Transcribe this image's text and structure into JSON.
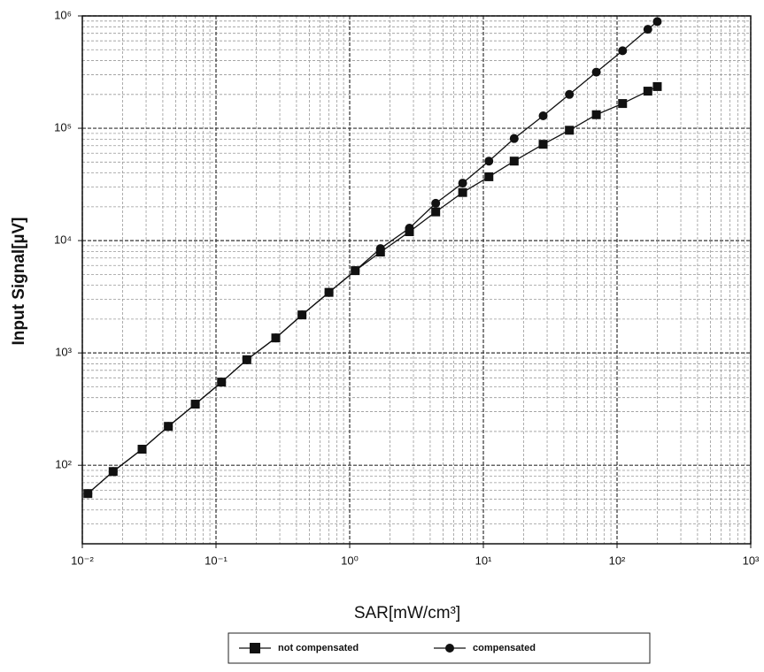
{
  "chart_data": {
    "type": "line",
    "x_label": "SAR[mW/cm³]",
    "y_label": "Input Signal[µV]",
    "x": [
      0.011,
      0.017,
      0.028,
      0.044,
      0.07,
      0.11,
      0.17,
      0.28,
      0.44,
      0.7,
      1.1,
      1.7,
      2.8,
      4.4,
      7,
      11,
      17,
      28,
      44,
      70,
      110,
      170,
      200
    ],
    "series": [
      {
        "name": "not compensated",
        "color": "#111111",
        "marker": "square",
        "values": [
          56,
          88,
          139,
          222,
          350,
          550,
          870,
          1360,
          2180,
          3460,
          5400,
          7900,
          12000,
          18000,
          26800,
          37000,
          51000,
          72000,
          96000,
          132000,
          166000,
          214000,
          235000
        ]
      },
      {
        "name": "compensated",
        "color": "#111111",
        "marker": "circle",
        "values": [
          56,
          88,
          139,
          222,
          350,
          550,
          870,
          1360,
          2180,
          3460,
          5400,
          8500,
          12900,
          21500,
          32500,
          51000,
          81000,
          129000,
          200000,
          316000,
          490000,
          760000,
          890000
        ]
      }
    ],
    "x_log": true,
    "y_log": true,
    "xlim": [
      0.01,
      1000
    ],
    "ylim": [
      20,
      1000000
    ],
    "xticks": [
      {
        "value": 0.01,
        "label": "10⁻²"
      },
      {
        "value": 0.1,
        "label": "10⁻¹"
      },
      {
        "value": 1,
        "label": "10⁰"
      },
      {
        "value": 10,
        "label": "10¹"
      },
      {
        "value": 100,
        "label": "10²"
      },
      {
        "value": 1000,
        "label": "10³"
      }
    ],
    "yticks": [
      {
        "value": 100,
        "label": "10²"
      },
      {
        "value": 1000,
        "label": "10³"
      },
      {
        "value": 10000,
        "label": "10⁴"
      },
      {
        "value": 100000,
        "label": "10⁵"
      },
      {
        "value": 1000000,
        "label": "10⁶"
      }
    ],
    "grid": true,
    "minor_grid": true,
    "legend": "bottom"
  }
}
